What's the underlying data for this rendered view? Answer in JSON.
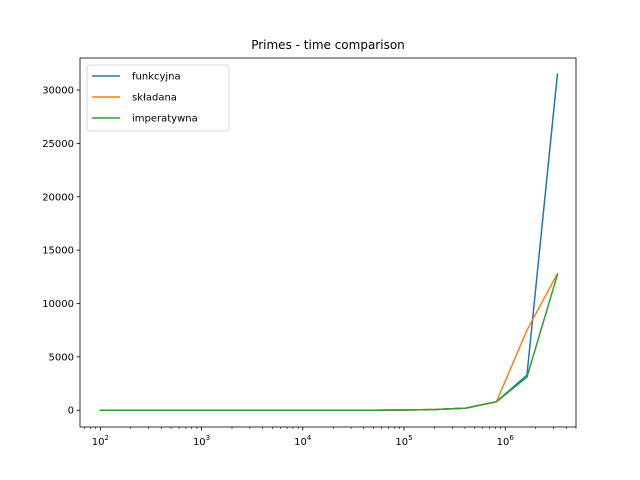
{
  "chart_data": {
    "type": "line",
    "title": "Primes - time comparison",
    "xlabel": "",
    "ylabel": "",
    "xscale": "log",
    "xlim": [
      63,
      5000000
    ],
    "ylim": [
      -1570,
      33000
    ],
    "grid": false,
    "legend_placement": "upper-left",
    "x": [
      100,
      200,
      400,
      800,
      1600,
      3200,
      6400,
      12800,
      25600,
      51200,
      102400,
      204800,
      409600,
      819200,
      1638400,
      3276800
    ],
    "x_ticks": [
      {
        "value": 100,
        "base": "10",
        "exp": "2"
      },
      {
        "value": 1000,
        "base": "10",
        "exp": "3"
      },
      {
        "value": 10000,
        "base": "10",
        "exp": "4"
      },
      {
        "value": 100000,
        "base": "10",
        "exp": "5"
      },
      {
        "value": 1000000,
        "base": "10",
        "exp": "6"
      }
    ],
    "y_ticks": [
      {
        "value": 0,
        "label": "0"
      },
      {
        "value": 5000,
        "label": "5000"
      },
      {
        "value": 10000,
        "label": "10000"
      },
      {
        "value": 15000,
        "label": "15000"
      },
      {
        "value": 20000,
        "label": "20000"
      },
      {
        "value": 25000,
        "label": "25000"
      },
      {
        "value": 30000,
        "label": "30000"
      }
    ],
    "series": [
      {
        "name": "funkcyjna",
        "color": "#1f77b4",
        "values": [
          0,
          0,
          0,
          0,
          0,
          0,
          0,
          0,
          1,
          5,
          20,
          70,
          200,
          800,
          3300,
          31500
        ]
      },
      {
        "name": "składana",
        "color": "#ff7f0e",
        "values": [
          0,
          0,
          0,
          0,
          0,
          0,
          0,
          0,
          1,
          5,
          20,
          70,
          200,
          800,
          7500,
          12800
        ]
      },
      {
        "name": "imperatywna",
        "color": "#2ca02c",
        "values": [
          0,
          0,
          0,
          0,
          0,
          0,
          0,
          0,
          1,
          5,
          20,
          70,
          200,
          800,
          3100,
          12700
        ]
      }
    ]
  }
}
